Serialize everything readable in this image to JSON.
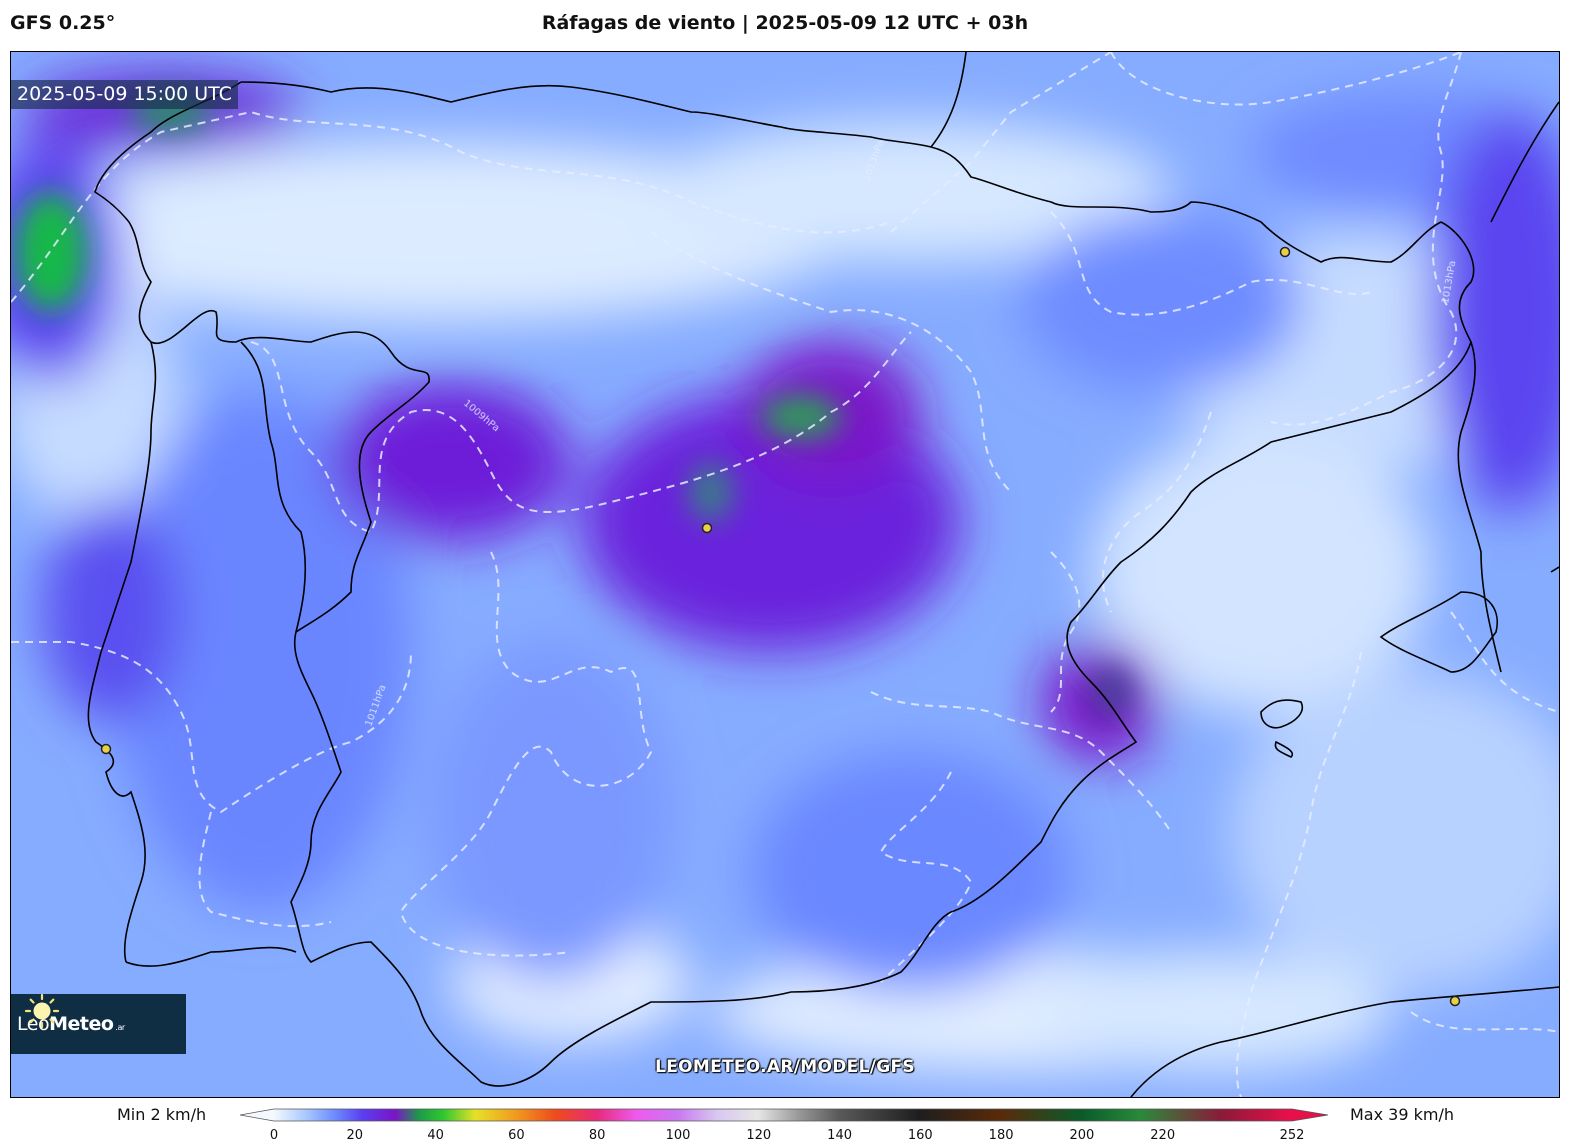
{
  "header": {
    "model": "GFS 0.25°",
    "title": "Ráfagas de viento | 2025-05-09 12 UTC + 03h"
  },
  "map": {
    "valid_time": "2025-05-09 15:00 UTC",
    "watermark": "LEOMETEO.AR/MODEL/GFS",
    "isobar_labels": [
      "1009hPa",
      "1011hPa",
      "1013hPa",
      "1013hPa"
    ],
    "city_markers": [
      "marker",
      "marker",
      "marker",
      "marker"
    ],
    "colors": {
      "land_border": "#000000",
      "isobar": "#e6ecff",
      "marker_fill": "#e8d04a"
    }
  },
  "logo": {
    "name_light": "Leo",
    "name_bold": "Meteo",
    "suffix": ".ar"
  },
  "colorbar": {
    "min_label": "Min 2 km/h",
    "max_label": "Max 39 km/h",
    "ticks": [
      "0",
      "20",
      "40",
      "60",
      "80",
      "100",
      "120",
      "140",
      "160",
      "180",
      "200",
      "220",
      "252"
    ],
    "tick_values": [
      0,
      20,
      40,
      60,
      80,
      100,
      120,
      140,
      160,
      180,
      200,
      220,
      252
    ],
    "range": [
      0,
      252
    ],
    "stops": [
      {
        "v": 0,
        "c": "#f4f8ff"
      },
      {
        "v": 8,
        "c": "#a8c8ff"
      },
      {
        "v": 15,
        "c": "#6d8cff"
      },
      {
        "v": 22,
        "c": "#5a3ef0"
      },
      {
        "v": 30,
        "c": "#7a14c8"
      },
      {
        "v": 36,
        "c": "#1e9a4a"
      },
      {
        "v": 42,
        "c": "#2ec82e"
      },
      {
        "v": 50,
        "c": "#e8e028"
      },
      {
        "v": 60,
        "c": "#f09a1e"
      },
      {
        "v": 70,
        "c": "#ee4a1e"
      },
      {
        "v": 80,
        "c": "#e82a7a"
      },
      {
        "v": 90,
        "c": "#ee5aee"
      },
      {
        "v": 100,
        "c": "#c878f0"
      },
      {
        "v": 110,
        "c": "#d8c8f0"
      },
      {
        "v": 120,
        "c": "#e6e6e6"
      },
      {
        "v": 130,
        "c": "#9a9a9a"
      },
      {
        "v": 140,
        "c": "#5a5a5a"
      },
      {
        "v": 160,
        "c": "#1e1e1e"
      },
      {
        "v": 180,
        "c": "#5a2a0a"
      },
      {
        "v": 200,
        "c": "#0a5a2a"
      },
      {
        "v": 215,
        "c": "#2a8a3a"
      },
      {
        "v": 235,
        "c": "#8a1a3a"
      },
      {
        "v": 252,
        "c": "#e8104a"
      }
    ]
  }
}
